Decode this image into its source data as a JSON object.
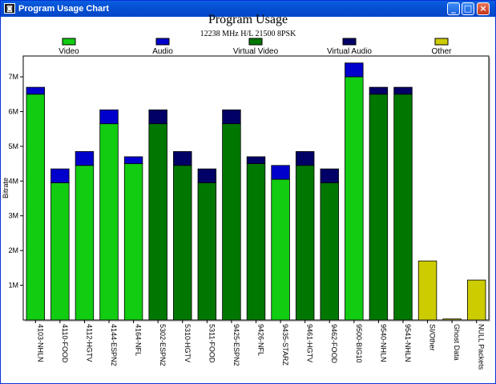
{
  "window": {
    "title": "Program Usage Chart",
    "icon": "app-icon",
    "controls": [
      "minimize-icon",
      "maximize-icon",
      "close-icon"
    ]
  },
  "colors": {
    "video": "#11cc11",
    "audio": "#0000cc",
    "virtual_video": "#007700",
    "virtual_audio": "#000066",
    "other": "#cccc00"
  },
  "chart_data": {
    "type": "bar",
    "stacked": true,
    "title": "Program Usage",
    "subtitle": "12238 MHz H/L 21500 8PSK",
    "ylabel": "Bitrate",
    "xlabel": "",
    "ylim": [
      0,
      7.6
    ],
    "yticks": [
      "1M",
      "2M",
      "3M",
      "4M",
      "5M",
      "6M",
      "7M"
    ],
    "ytick_values": [
      1,
      2,
      3,
      4,
      5,
      6,
      7
    ],
    "grid": false,
    "legend_position": "top",
    "legend": [
      {
        "key": "video",
        "label": "Video"
      },
      {
        "key": "audio",
        "label": "Audio"
      },
      {
        "key": "virtual_video",
        "label": "Virtual Video"
      },
      {
        "key": "virtual_audio",
        "label": "Virtual Audio"
      },
      {
        "key": "other",
        "label": "Other"
      }
    ],
    "categories": [
      "4103-NHLN",
      "4110-FOOD",
      "4112-HGTV",
      "4144-ESPN2",
      "4164-NFL",
      "5302-ESPN2",
      "5310-HGTV",
      "5311-FOOD",
      "9425-ESPN2",
      "9426-NFL",
      "9435-STARZ",
      "9461-HGTV",
      "9462-FOOD",
      "9500-BIG10",
      "9540-NHLN",
      "9541-NHLN",
      "SI/Other",
      "Ghost Data",
      "NULL Packets"
    ],
    "bars": [
      {
        "video": 6.5,
        "audio": 0.2,
        "virtual_video": 0,
        "virtual_audio": 0,
        "other": 0
      },
      {
        "video": 3.95,
        "audio": 0.4,
        "virtual_video": 0,
        "virtual_audio": 0,
        "other": 0
      },
      {
        "video": 4.45,
        "audio": 0.4,
        "virtual_video": 0,
        "virtual_audio": 0,
        "other": 0
      },
      {
        "video": 5.65,
        "audio": 0.4,
        "virtual_video": 0,
        "virtual_audio": 0,
        "other": 0
      },
      {
        "video": 4.5,
        "audio": 0.2,
        "virtual_video": 0,
        "virtual_audio": 0,
        "other": 0
      },
      {
        "video": 0,
        "audio": 0,
        "virtual_video": 5.65,
        "virtual_audio": 0.4,
        "other": 0
      },
      {
        "video": 0,
        "audio": 0,
        "virtual_video": 4.45,
        "virtual_audio": 0.4,
        "other": 0
      },
      {
        "video": 0,
        "audio": 0,
        "virtual_video": 3.95,
        "virtual_audio": 0.4,
        "other": 0
      },
      {
        "video": 0,
        "audio": 0,
        "virtual_video": 5.65,
        "virtual_audio": 0.4,
        "other": 0
      },
      {
        "video": 0,
        "audio": 0,
        "virtual_video": 4.5,
        "virtual_audio": 0.2,
        "other": 0
      },
      {
        "video": 4.05,
        "audio": 0.4,
        "virtual_video": 0,
        "virtual_audio": 0,
        "other": 0
      },
      {
        "video": 0,
        "audio": 0,
        "virtual_video": 4.45,
        "virtual_audio": 0.4,
        "other": 0
      },
      {
        "video": 0,
        "audio": 0,
        "virtual_video": 3.95,
        "virtual_audio": 0.4,
        "other": 0
      },
      {
        "video": 7.0,
        "audio": 0.4,
        "virtual_video": 0,
        "virtual_audio": 0,
        "other": 0
      },
      {
        "video": 0,
        "audio": 0,
        "virtual_video": 6.5,
        "virtual_audio": 0.2,
        "other": 0
      },
      {
        "video": 0,
        "audio": 0,
        "virtual_video": 6.5,
        "virtual_audio": 0.2,
        "other": 0
      },
      {
        "video": 0,
        "audio": 0,
        "virtual_video": 0,
        "virtual_audio": 0,
        "other": 1.7
      },
      {
        "video": 0,
        "audio": 0,
        "virtual_video": 0,
        "virtual_audio": 0,
        "other": 0.03
      },
      {
        "video": 0,
        "audio": 0,
        "virtual_video": 0,
        "virtual_audio": 0,
        "other": 1.15
      }
    ]
  }
}
